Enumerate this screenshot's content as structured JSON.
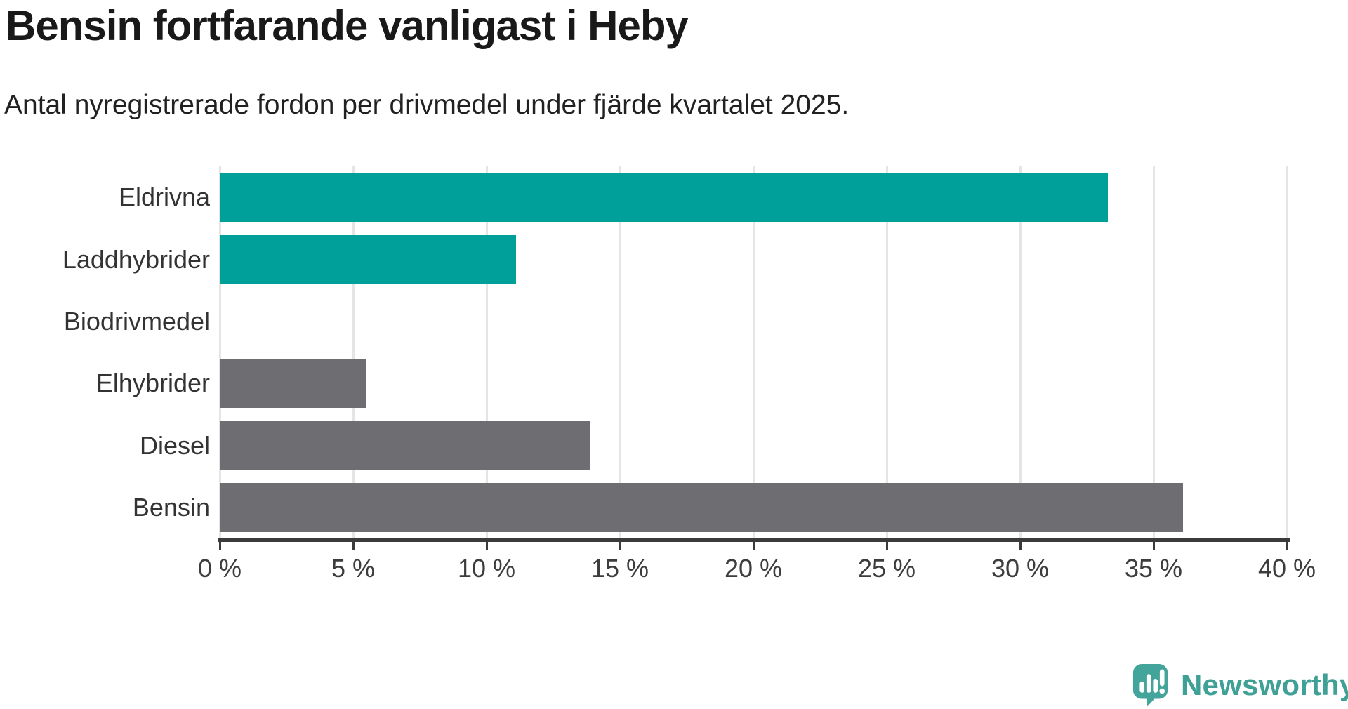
{
  "header": {
    "title": "Bensin fortfarande vanligast i Heby",
    "subtitle": "Antal nyregistrerade fordon per drivmedel under fjärde kvartalet 2025."
  },
  "chart_data": {
    "type": "bar",
    "orientation": "horizontal",
    "title": "Bensin fortfarande vanligast i Heby",
    "subtitle": "Antal nyregistrerade fordon per drivmedel under fjärde kvartalet 2025.",
    "categories": [
      "Eldrivna",
      "Laddhybrider",
      "Biodrivmedel",
      "Elhybrider",
      "Diesel",
      "Bensin"
    ],
    "values": [
      33.3,
      11.1,
      0,
      5.5,
      13.9,
      36.1
    ],
    "unit": "%",
    "xlim": [
      0,
      40
    ],
    "x_tick_step": 5,
    "x_tick_labels": [
      "0 %",
      "5 %",
      "10 %",
      "15 %",
      "20 %",
      "25 %",
      "30 %",
      "35 %",
      "40 %"
    ],
    "highlighted_categories": [
      "Eldrivna",
      "Laddhybrider"
    ],
    "colors": {
      "highlight": "#00A09A",
      "default": "#6D6D72"
    },
    "grid": "vertical-only",
    "legend": "none"
  },
  "footer": {
    "brand": "Newsworthy",
    "logo_icon": "newsworthy-speech-bubble-bar-chart-icon",
    "brand_color": "#3FA096",
    "icon_color": "#42A49A"
  }
}
